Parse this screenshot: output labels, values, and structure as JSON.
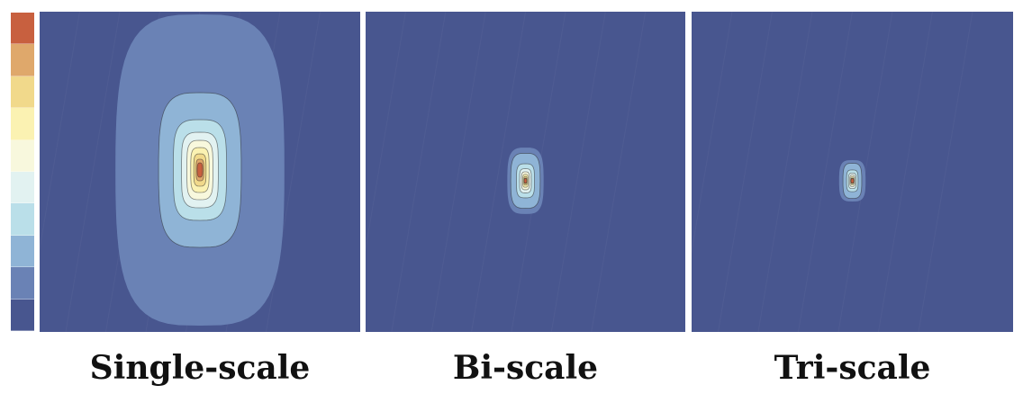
{
  "colorbar": {
    "colors": [
      "#c8603f",
      "#dfa86b",
      "#f1d98b",
      "#fbf2b2",
      "#f8f8dd",
      "#e2f2f1",
      "#badfe9",
      "#8fb4d6",
      "#6a82b5",
      "#48568f"
    ]
  },
  "panels": [
    {
      "caption": "Single-scale",
      "extent": 1.0
    },
    {
      "caption": "Bi-scale",
      "extent": 0.12
    },
    {
      "caption": "Tri-scale",
      "extent": 0.06
    }
  ]
}
